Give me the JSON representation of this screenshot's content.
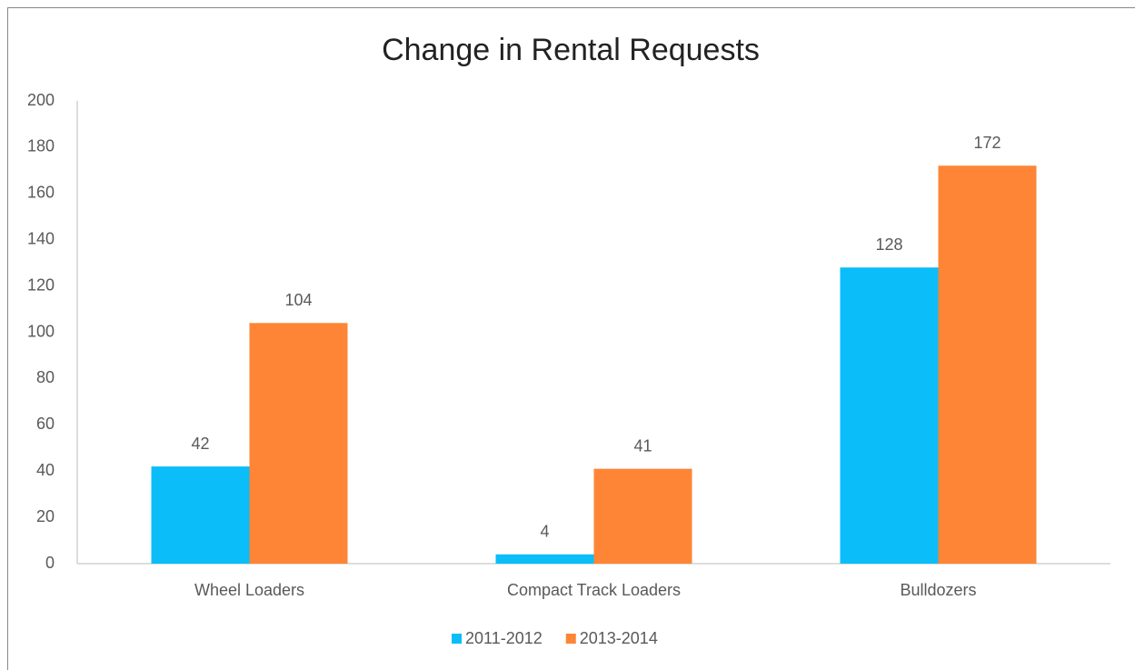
{
  "chart_data": {
    "type": "bar",
    "title": "Change in Rental Requests",
    "categories": [
      "Wheel Loaders",
      "Compact Track Loaders",
      "Bulldozers"
    ],
    "series": [
      {
        "name": "2011-2012",
        "color": "#0bbdf8",
        "values": [
          42,
          4,
          128
        ]
      },
      {
        "name": "2013-2014",
        "color": "#fd8535",
        "values": [
          104,
          41,
          172
        ]
      }
    ],
    "ylim": [
      0,
      200
    ],
    "yticks": [
      0,
      20,
      40,
      60,
      80,
      100,
      120,
      140,
      160,
      180,
      200
    ],
    "grid": false,
    "legend": "bottom"
  }
}
